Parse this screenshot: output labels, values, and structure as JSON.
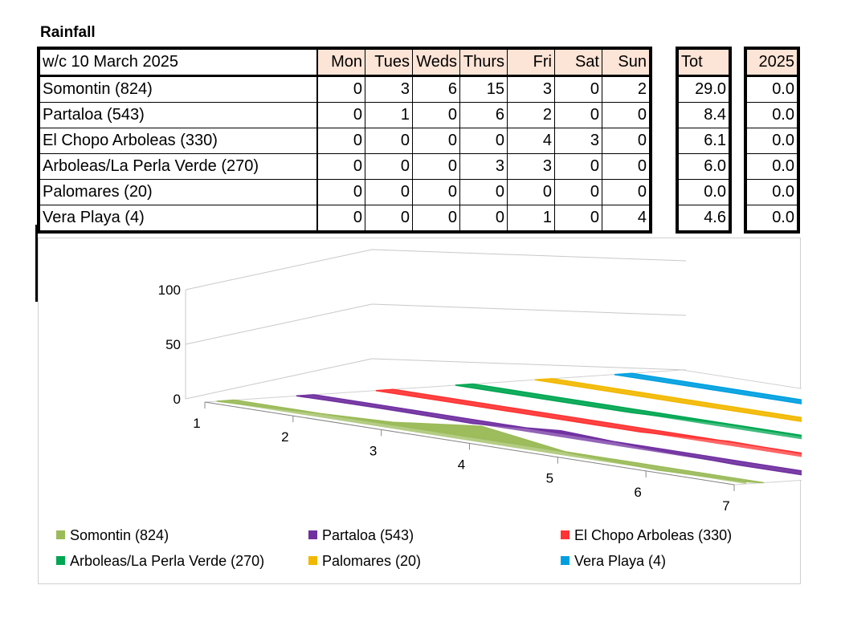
{
  "title": "Rainfall",
  "table": {
    "header_label": "w/c 10 March  2025",
    "days": [
      "Mon",
      "Tues",
      "Weds",
      "Thurs",
      "Fri",
      "Sat",
      "Sun"
    ],
    "tot_header": "Tot",
    "year_header": "2025",
    "rows": [
      {
        "name": "Somontin (824)",
        "values": [
          "0",
          "3",
          "6",
          "15",
          "3",
          "0",
          "2"
        ],
        "tot": "29.0",
        "year": "0.0"
      },
      {
        "name": "Partaloa (543)",
        "values": [
          "0",
          "1",
          "0",
          "6",
          "2",
          "0",
          "0"
        ],
        "tot": "8.4",
        "year": "0.0"
      },
      {
        "name": "El Chopo Arboleas (330)",
        "values": [
          "0",
          "0",
          "0",
          "0",
          "4",
          "3",
          "0"
        ],
        "tot": "6.1",
        "year": "0.0"
      },
      {
        "name": "Arboleas/La Perla Verde (270)",
        "values": [
          "0",
          "0",
          "0",
          "3",
          "3",
          "0",
          "0"
        ],
        "tot": "6.0",
        "year": "0.0"
      },
      {
        "name": "Palomares (20)",
        "values": [
          "0",
          "0",
          "0",
          "0",
          "0",
          "0",
          "0"
        ],
        "tot": "0.0",
        "year": "0.0"
      },
      {
        "name": "Vera Playa (4)",
        "values": [
          "0",
          "0",
          "0",
          "0",
          "1",
          "0",
          "4"
        ],
        "tot": "4.6",
        "year": "0.0"
      }
    ]
  },
  "chart_data": {
    "type": "area",
    "three_d": true,
    "x": [
      1,
      2,
      3,
      4,
      5,
      6,
      7
    ],
    "y_ticks": [
      0,
      50,
      100
    ],
    "ylim": [
      0,
      100
    ],
    "series": [
      {
        "name": "Somontin (824)",
        "values": [
          0,
          3,
          6,
          15,
          3,
          0,
          2
        ],
        "color": "#9bbb59"
      },
      {
        "name": "Partaloa (543)",
        "values": [
          0,
          1,
          0,
          6,
          2,
          0,
          0
        ],
        "color": "#7030a0"
      },
      {
        "name": "El Chopo Arboleas (330)",
        "values": [
          0,
          0,
          0,
          0,
          4,
          3,
          0
        ],
        "color": "#ff3333"
      },
      {
        "name": "Arboleas/La Perla Verde (270)",
        "values": [
          0,
          0,
          0,
          3,
          3,
          0,
          0
        ],
        "color": "#00a651"
      },
      {
        "name": "Palomares (20)",
        "values": [
          0,
          0,
          0,
          0,
          0,
          0,
          0
        ],
        "color": "#f2b800"
      },
      {
        "name": "Vera Playa (4)",
        "values": [
          0,
          0,
          0,
          0,
          1,
          0,
          4
        ],
        "color": "#00a0e0"
      }
    ],
    "legend_position": "bottom"
  }
}
